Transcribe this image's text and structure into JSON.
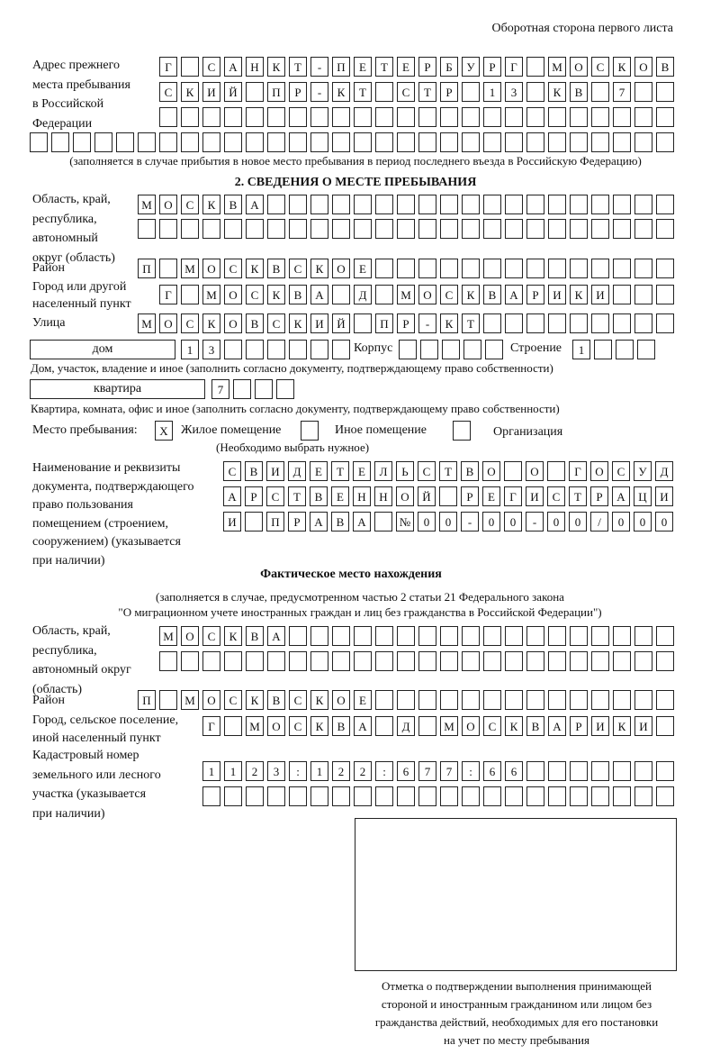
{
  "header": {
    "page_side": "Оборотная сторона первого листа"
  },
  "previous_address": {
    "label": "Адрес прежнего\nместа пребывания\nв Российской\nФедерации",
    "rows": [
      "Г САНКТ-ПЕТЕРБУРГ МОСКОВ",
      "СКИЙ ПР-КТ СТР 13 КВ 7",
      "",
      ""
    ],
    "note": "(заполняется в случае прибытия в новое место пребывания в период последнего въезда в Российскую Федерацию)"
  },
  "section2": {
    "title": "2. СВЕДЕНИЯ О МЕСТЕ ПРЕБЫВАНИЯ",
    "region_label": "Область, край,\nреспублика,\nавтономный\nокруг (область)",
    "region_rows": [
      "МОСКВА",
      ""
    ],
    "district_label": "Район",
    "district": "П МОСКВСКОЕ",
    "city_label": "Город или другой\nнаселенный пункт",
    "city": "Г МОСКВА Д МОСКВАРИКИ",
    "street_label": "Улица",
    "street": "МОСКОВСКИЙ ПР-КТ",
    "house_type": "дом",
    "house_number": "13",
    "building_label": "Корпус",
    "building": "",
    "structure_label": "Строение",
    "structure": "1",
    "house_note": "Дом, участок, владение и иное (заполнить согласно документу, подтверждающему право собственности)",
    "apartment_type": "квартира",
    "apartment_number": "7",
    "apartment_note": "Квартира, комната, офис и иное (заполнить согласно документу, подтверждающему право собственности)",
    "stay_place_label": "Место пребывания:",
    "options": [
      {
        "label": "Жилое помещение",
        "mark": "Х",
        "checked": true
      },
      {
        "label": "Иное помещение",
        "mark": "",
        "checked": false
      },
      {
        "label": "Организация",
        "mark": "",
        "checked": false
      }
    ],
    "choose_note": "(Необходимо выбрать нужное)",
    "document_label": "Наименование и реквизиты\nдокумента, подтверждающего\nправо пользования\nпомещением (строением,\nсооружением) (указывается\nпри наличии)",
    "document_rows": [
      "СВИДЕТЕЛЬСТВО О ГОСУД",
      "АРСТВЕННОЙ РЕГИСТРАЦИ",
      "И ПРАВА №00-00-00/000"
    ]
  },
  "actual_location": {
    "title": "Фактическое место нахождения",
    "note_line1": "(заполняется в случае, предусмотренном частью 2 статьи 21 Федерального закона",
    "note_line2": "\"О миграционном учете иностранных граждан и лиц без гражданства в Российской Федерации\")",
    "region_label": "Область, край,\nреспублика,\nавтономный округ\n(область)",
    "region_rows": [
      "МОСКВА",
      ""
    ],
    "district_label": "Район",
    "district": "П МОСКВСКОЕ",
    "city_label": "Город, сельское поселение,\nиной населенный пункт",
    "city": "Г МОСКВА Д МОСКВАРИКИ",
    "cadastral_label": "Кадастровый номер\nземельного или лесного\nучастка (указывается\nпри наличии)",
    "cadastral_rows": [
      "1123:122:677:66",
      ""
    ]
  },
  "confirmation": {
    "caption": "Отметка о подтверждении выполнения принимающей\nстороной и иностранным гражданином или лицом без\nгражданства действий, необходимых для его постановки\nна учет по месту пребывания"
  }
}
